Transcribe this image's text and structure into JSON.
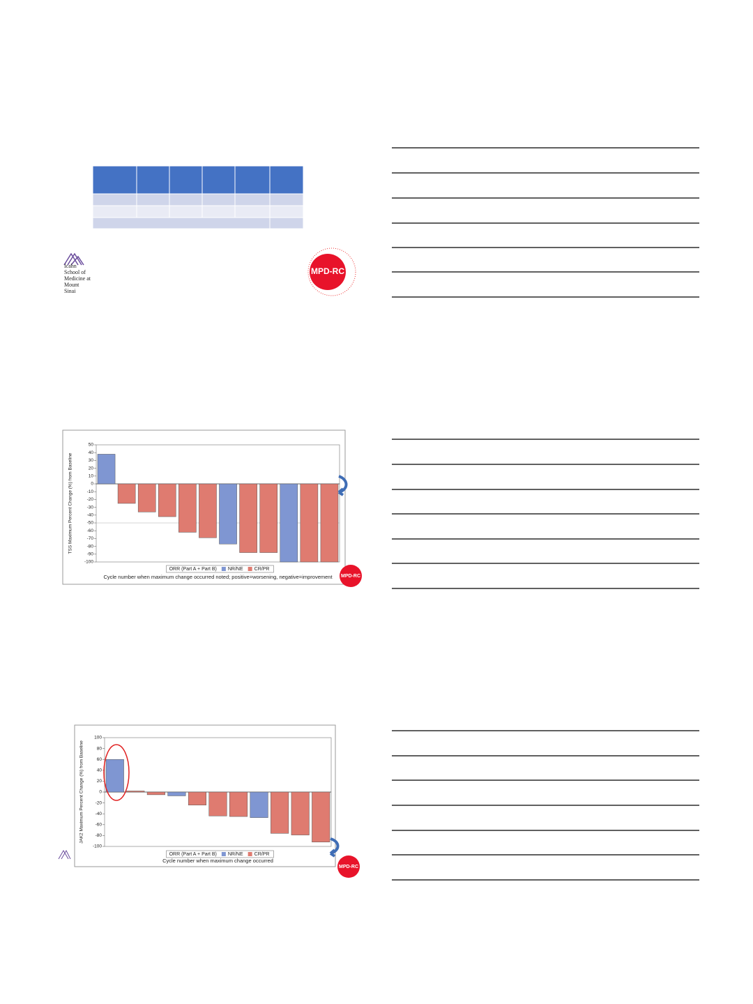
{
  "logos": {
    "icahn": "Icahn School of Medicine at Mount Sinai",
    "mpdrc": "MPD-RC"
  },
  "chart_data": [
    {
      "type": "bar",
      "ylabel": "TSS Maximum Percent Change (%) from Baseline",
      "legend_title": "ORR (Part A + Part B)",
      "footnote": "Cycle number when maximum change occurred noted; positive=worsening, negative=improvement",
      "ylim": [
        -100,
        50
      ],
      "yticks": [
        50,
        40,
        30,
        20,
        10,
        0,
        -10,
        -20,
        -30,
        -40,
        -50,
        -60,
        -70,
        -80,
        -90,
        -100
      ],
      "reference_line": -50,
      "series": [
        {
          "name": "NR/NE",
          "color": "#7f96d2",
          "values": [
            38,
            null,
            null,
            null,
            null,
            null,
            -77,
            null,
            null,
            -100,
            null,
            null
          ]
        },
        {
          "name": "CR/PR",
          "color": "#df7b70",
          "values": [
            null,
            -25,
            -36,
            -42,
            -62,
            -69,
            null,
            -88,
            -88,
            null,
            -100,
            -100
          ]
        }
      ]
    },
    {
      "type": "bar",
      "ylabel": "JAK2 Maximum Percent Change (%) from Baseline",
      "legend_title": "ORR (Part A + Part B)",
      "footnote": "Cycle number when maximum change occurred",
      "ylim": [
        -100,
        100
      ],
      "yticks": [
        100,
        80,
        60,
        40,
        20,
        0,
        -20,
        -40,
        -60,
        -80,
        -100
      ],
      "series": [
        {
          "name": "NR/NE",
          "color": "#7f96d2",
          "values": [
            60,
            null,
            null,
            -7,
            null,
            null,
            null,
            -47,
            null,
            null,
            null
          ]
        },
        {
          "name": "CR/PR",
          "color": "#df7b70",
          "values": [
            null,
            2,
            -5,
            null,
            -24,
            -44,
            -45,
            null,
            -76,
            -79,
            -92
          ]
        }
      ]
    }
  ]
}
